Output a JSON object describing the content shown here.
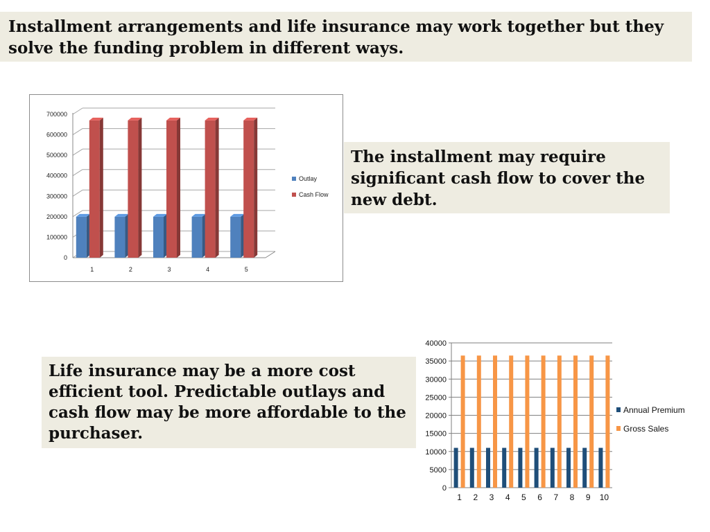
{
  "headline": "Installment arrangements and life insurance may work together but they solve the funding problem in different ways.",
  "callouts": {
    "installment": "The installment may require significant cash flow to cover the new debt.",
    "life_insurance": "Life insurance may be a more cost efficient tool.  Predictable outlays and cash flow may be more affordable to the purchaser."
  },
  "chart_data": [
    {
      "type": "bar",
      "style": "3d-clustered-column",
      "categories": [
        "1",
        "2",
        "3",
        "4",
        "5"
      ],
      "series": [
        {
          "name": "Outlay",
          "color": "#4f81bd",
          "values": [
            200000,
            200000,
            200000,
            200000,
            200000
          ]
        },
        {
          "name": "Cash Flow",
          "color": "#c0504d",
          "values": [
            670000,
            670000,
            670000,
            670000,
            670000
          ]
        }
      ],
      "ylim": [
        0,
        700000
      ],
      "yticks": [
        "0",
        "100000",
        "200000",
        "300000",
        "400000",
        "500000",
        "600000",
        "700000"
      ],
      "grid": true,
      "legend": "right",
      "title": "",
      "xlabel": "",
      "ylabel": ""
    },
    {
      "type": "bar",
      "style": "clustered-column",
      "categories": [
        "1",
        "2",
        "3",
        "4",
        "5",
        "6",
        "7",
        "8",
        "9",
        "10"
      ],
      "series": [
        {
          "name": "Annual Premium",
          "color": "#1f4e79",
          "values": [
            11000,
            11000,
            11000,
            11000,
            11000,
            11000,
            11000,
            11000,
            11000,
            11000
          ]
        },
        {
          "name": "Gross Sales",
          "color": "#f79646",
          "values": [
            36500,
            36500,
            36500,
            36500,
            36500,
            36500,
            36500,
            36500,
            36500,
            36500
          ]
        }
      ],
      "ylim": [
        0,
        40000
      ],
      "yticks": [
        "0",
        "5000",
        "10000",
        "15000",
        "20000",
        "25000",
        "30000",
        "35000",
        "40000"
      ],
      "grid": true,
      "legend": "right",
      "title": "",
      "xlabel": "",
      "ylabel": ""
    }
  ]
}
